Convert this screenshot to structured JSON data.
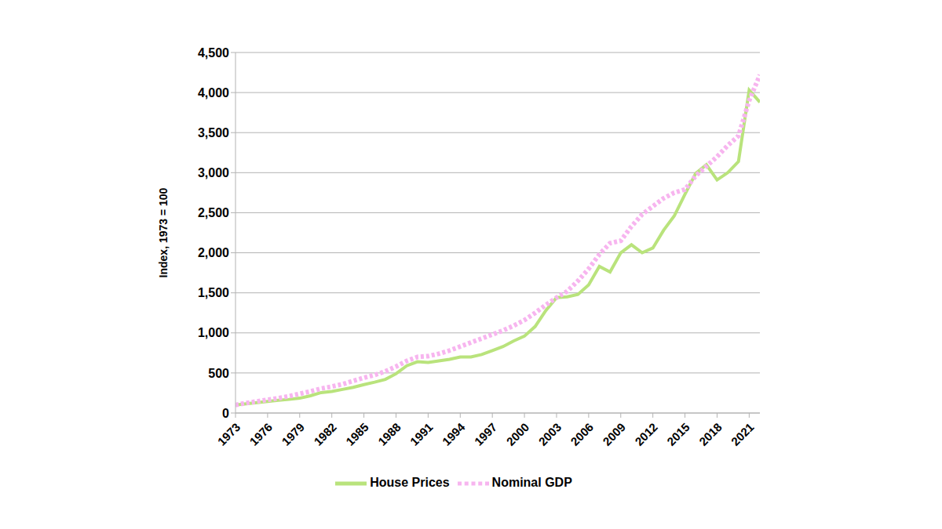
{
  "chart_data": {
    "type": "line",
    "y_label": "Index, 1973 = 100",
    "x": [
      1973,
      1974,
      1975,
      1976,
      1977,
      1978,
      1979,
      1980,
      1981,
      1982,
      1983,
      1984,
      1985,
      1986,
      1987,
      1988,
      1989,
      1990,
      1991,
      1992,
      1993,
      1994,
      1995,
      1996,
      1997,
      1998,
      1999,
      2000,
      2001,
      2002,
      2003,
      2004,
      2005,
      2006,
      2007,
      2008,
      2009,
      2010,
      2011,
      2012,
      2013,
      2014,
      2015,
      2016,
      2017,
      2018,
      2019,
      2020,
      2021,
      2022
    ],
    "series": [
      {
        "name": "House Prices",
        "color": "#b9e37c",
        "line_style": "solid",
        "values": [
          100,
          115,
          130,
          145,
          160,
          170,
          185,
          215,
          255,
          270,
          295,
          320,
          355,
          385,
          420,
          490,
          590,
          640,
          630,
          650,
          670,
          700,
          700,
          730,
          780,
          830,
          900,
          960,
          1080,
          1280,
          1440,
          1450,
          1480,
          1600,
          1830,
          1760,
          2000,
          2100,
          2000,
          2060,
          2280,
          2460,
          2730,
          2990,
          3100,
          2910,
          3000,
          3140,
          4030,
          3880
        ]
      },
      {
        "name": "Nominal GDP",
        "color": "#f7b5ef",
        "line_style": "dotted",
        "values": [
          100,
          125,
          145,
          165,
          185,
          210,
          240,
          270,
          305,
          330,
          360,
          400,
          440,
          475,
          520,
          580,
          650,
          700,
          710,
          740,
          780,
          830,
          880,
          930,
          980,
          1030,
          1090,
          1160,
          1250,
          1350,
          1440,
          1520,
          1650,
          1800,
          1980,
          2120,
          2150,
          2330,
          2480,
          2580,
          2680,
          2750,
          2790,
          2960,
          3080,
          3200,
          3340,
          3460,
          3900,
          4220
        ]
      }
    ],
    "xlim": [
      1973,
      2022
    ],
    "xticks": [
      1973,
      1976,
      1979,
      1982,
      1985,
      1988,
      1991,
      1994,
      1997,
      2000,
      2003,
      2006,
      2009,
      2012,
      2015,
      2018,
      2021
    ],
    "ylim": [
      0,
      4500
    ],
    "yticks": [
      0,
      500,
      {
        "value": 1000,
        "label": "1,000"
      },
      {
        "value": 1500,
        "label": "1,500"
      },
      {
        "value": 2000,
        "label": "2,000"
      },
      {
        "value": 2500,
        "label": "2,500"
      },
      {
        "value": 3000,
        "label": "3,000"
      },
      {
        "value": 3500,
        "label": "3,500"
      },
      {
        "value": 4000,
        "label": "4,000"
      },
      {
        "value": 4500,
        "label": "4,500"
      }
    ],
    "grid": true,
    "legend": "bottom"
  }
}
